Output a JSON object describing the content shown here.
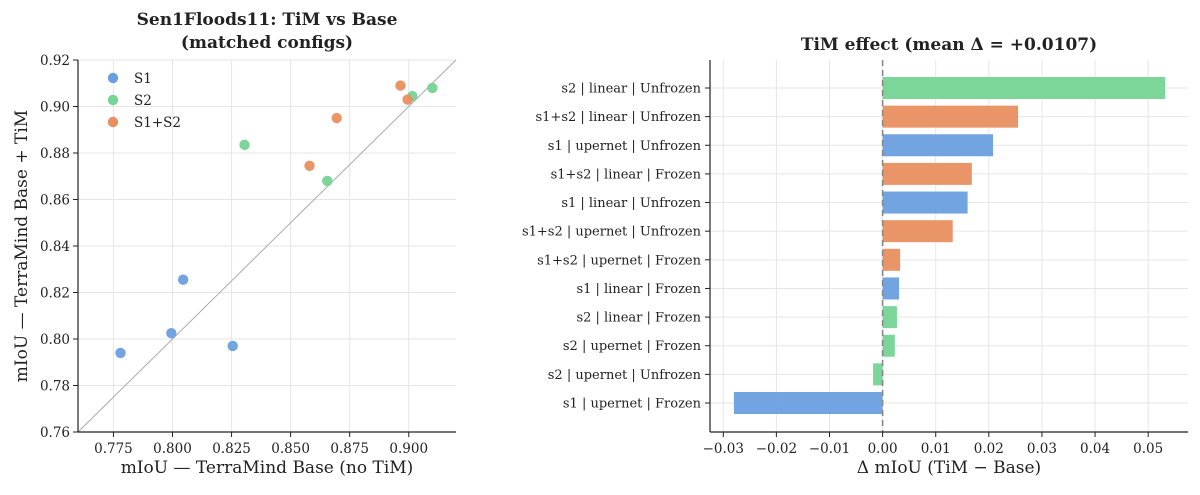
{
  "colors": {
    "S1": "#6a9fdf",
    "S2": "#76d494",
    "S1+S2": "#e98f60",
    "diagonal": "#aaaaaa",
    "zero_line": "#888888"
  },
  "chart_data": [
    {
      "type": "scatter",
      "title": "Sen1Floods11: TiM vs Base\n(matched configs)",
      "xlabel": "mIoU — TerraMind Base (no TiM)",
      "ylabel": "mIoU — TerraMind Base + TiM",
      "xlim": [
        0.76,
        0.92
      ],
      "ylim": [
        0.76,
        0.92
      ],
      "xticks": [
        0.775,
        0.8,
        0.825,
        0.85,
        0.875,
        0.9
      ],
      "xtick_labels": [
        "0.775",
        "0.800",
        "0.825",
        "0.850",
        "0.875",
        "0.900"
      ],
      "yticks": [
        0.76,
        0.78,
        0.8,
        0.82,
        0.84,
        0.86,
        0.88,
        0.9,
        0.92
      ],
      "ytick_labels": [
        "0.76",
        "0.78",
        "0.80",
        "0.82",
        "0.84",
        "0.86",
        "0.88",
        "0.90",
        "0.92"
      ],
      "grid": true,
      "diagonal": "y = x",
      "legend_position": "top-left",
      "series": [
        {
          "name": "S1",
          "points": [
            [
              0.778,
              0.794
            ],
            [
              0.7995,
              0.8025
            ],
            [
              0.8045,
              0.8255
            ],
            [
              0.8255,
              0.797
            ]
          ]
        },
        {
          "name": "S2",
          "points": [
            [
              0.8305,
              0.8835
            ],
            [
              0.8655,
              0.868
            ],
            [
              0.9015,
              0.9045
            ],
            [
              0.91,
              0.908
            ]
          ]
        },
        {
          "name": "S1+S2",
          "points": [
            [
              0.858,
              0.8745
            ],
            [
              0.8695,
              0.895
            ],
            [
              0.8965,
              0.909
            ],
            [
              0.8995,
              0.903
            ]
          ]
        }
      ]
    },
    {
      "type": "bar",
      "orientation": "horizontal",
      "title": "TiM effect (mean Δ = +0.0107)",
      "xlabel": "Δ mIoU (TiM − Base)",
      "xlim": [
        -0.0325,
        0.0575
      ],
      "xticks": [
        -0.03,
        -0.02,
        -0.01,
        0.0,
        0.01,
        0.02,
        0.03,
        0.04,
        0.05
      ],
      "xtick_labels": [
        "−0.03",
        "−0.02",
        "−0.01",
        "0.00",
        "0.01",
        "0.02",
        "0.03",
        "0.04",
        "0.05"
      ],
      "grid": true,
      "zero_line": true,
      "bars": [
        {
          "label": "s2 | linear | Unfrozen",
          "value": 0.0532,
          "group": "S2"
        },
        {
          "label": "s1+s2 | linear | Unfrozen",
          "value": 0.0255,
          "group": "S1+S2"
        },
        {
          "label": "s1 | upernet | Unfrozen",
          "value": 0.0208,
          "group": "S1"
        },
        {
          "label": "s1+s2 | linear | Frozen",
          "value": 0.0168,
          "group": "S1+S2"
        },
        {
          "label": "s1 | linear | Unfrozen",
          "value": 0.016,
          "group": "S1"
        },
        {
          "label": "s1+s2 | upernet | Unfrozen",
          "value": 0.0132,
          "group": "S1+S2"
        },
        {
          "label": "s1+s2 | upernet | Frozen",
          "value": 0.0033,
          "group": "S1+S2"
        },
        {
          "label": "s1 | linear | Frozen",
          "value": 0.0031,
          "group": "S1"
        },
        {
          "label": "s2 | linear | Frozen",
          "value": 0.0027,
          "group": "S2"
        },
        {
          "label": "s2 | upernet | Frozen",
          "value": 0.0023,
          "group": "S2"
        },
        {
          "label": "s2 | upernet | Unfrozen",
          "value": -0.0018,
          "group": "S2"
        },
        {
          "label": "s1 | upernet | Frozen",
          "value": -0.028,
          "group": "S1"
        }
      ]
    }
  ]
}
